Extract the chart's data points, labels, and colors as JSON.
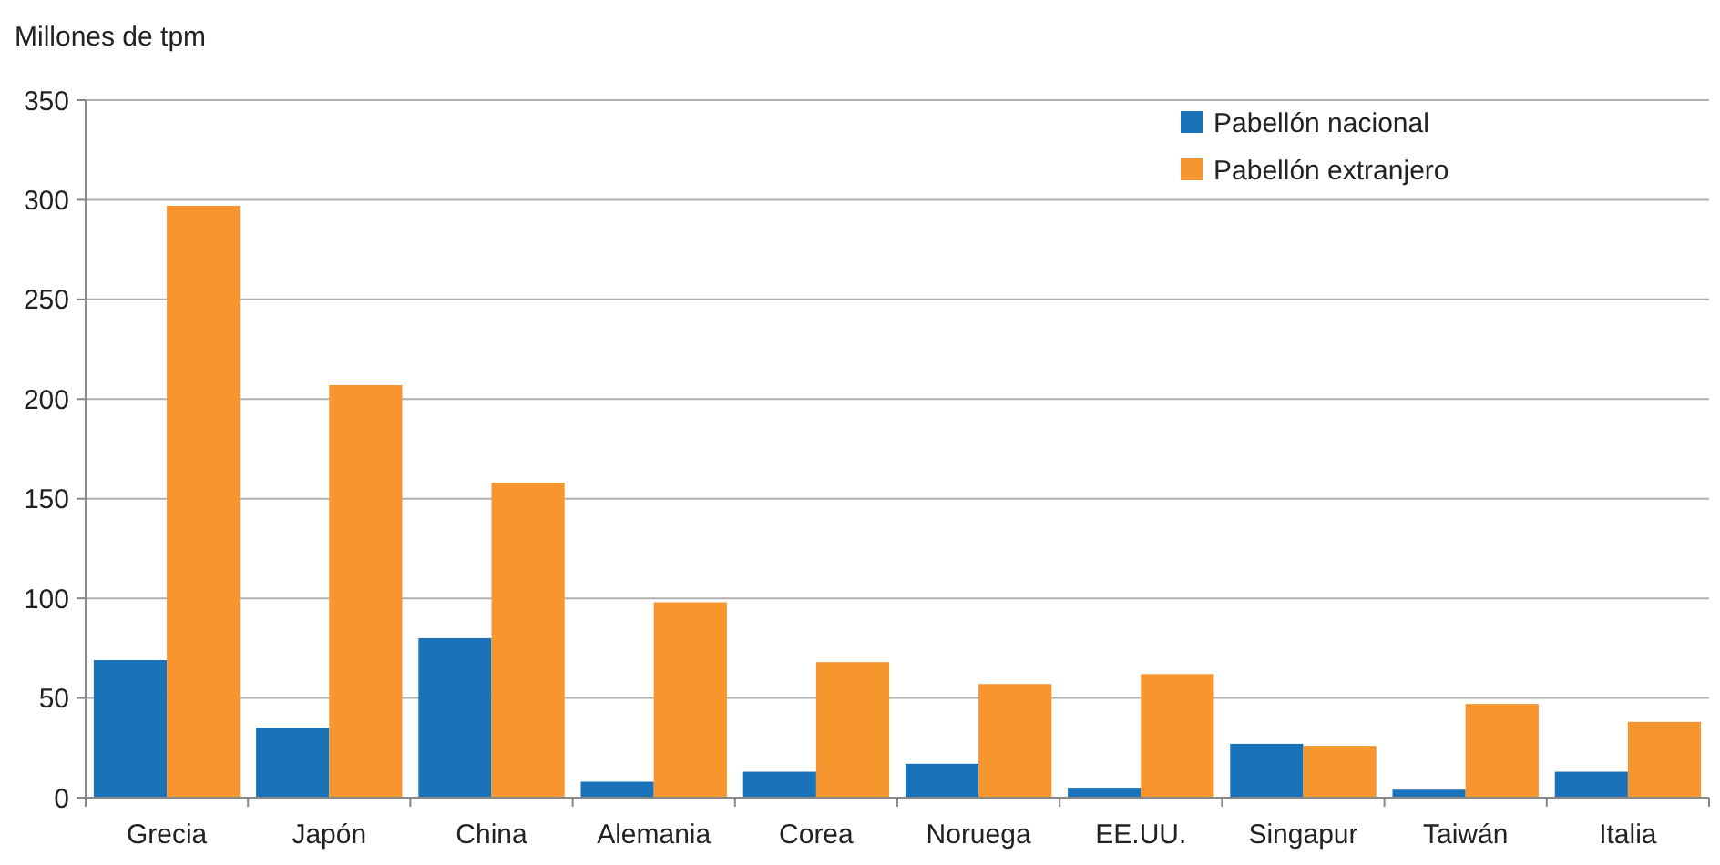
{
  "chart_data": {
    "type": "bar",
    "ylabel": "Millones de tpm",
    "categories": [
      "Grecia",
      "Japón",
      "China",
      "Alemania",
      "Corea",
      "Noruega",
      "EE.UU.",
      "Singapur",
      "Taiwán",
      "Italia"
    ],
    "series": [
      {
        "name": "Pabellón nacional",
        "color": "#1a72bb",
        "values": [
          69,
          35,
          80,
          8,
          13,
          17,
          5,
          27,
          4,
          13
        ]
      },
      {
        "name": "Pabellón extranjero",
        "color": "#f7962f",
        "values": [
          297,
          207,
          158,
          98,
          68,
          57,
          62,
          26,
          47,
          38
        ]
      }
    ],
    "ylim": [
      0,
      350
    ],
    "yticks": [
      0,
      50,
      100,
      150,
      200,
      250,
      300,
      350
    ],
    "grid": "y",
    "legend": "top right"
  }
}
